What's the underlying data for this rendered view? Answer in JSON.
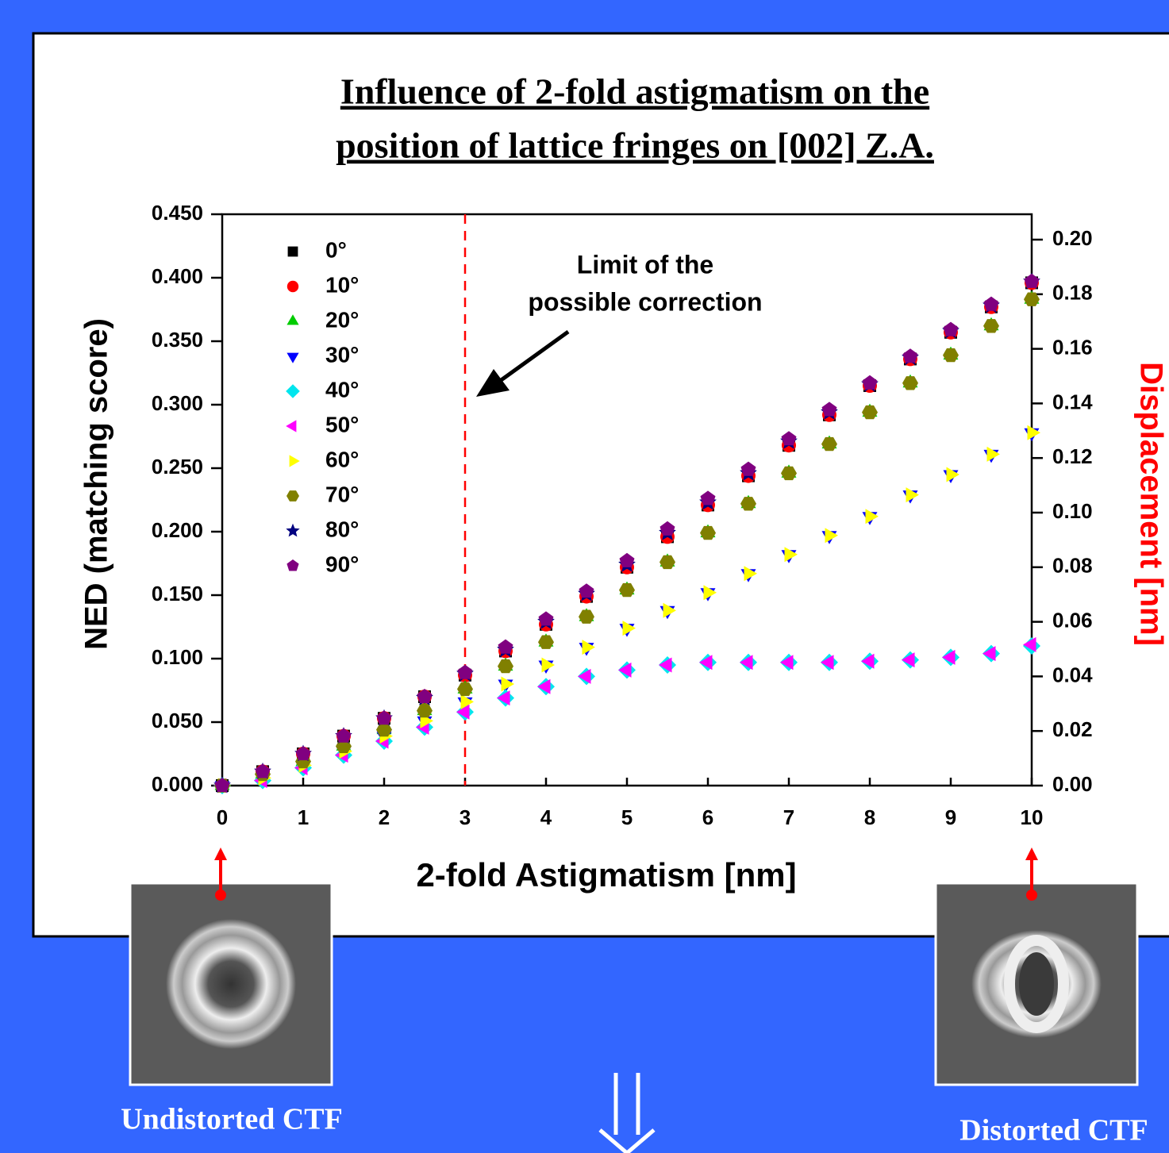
{
  "chart_data": {
    "type": "scatter",
    "title": [
      "Influence of 2-fold astigmatism on the",
      "position of lattice fringes on [002] Z.A."
    ],
    "xlabel": "2-fold Astigmatism [nm]",
    "ylabel": "NED (matching score)",
    "y2label": "Displacement [nm]",
    "annotation": [
      "Limit of the",
      "possible correction"
    ],
    "limit_x": 3,
    "x": [
      0,
      0.5,
      1,
      1.5,
      2,
      2.5,
      3,
      3.5,
      4,
      4.5,
      5,
      5.5,
      6,
      6.5,
      7,
      7.5,
      8,
      8.5,
      9,
      9.5,
      10
    ],
    "xlim": [
      0,
      10
    ],
    "xticks": [
      0,
      1,
      2,
      3,
      4,
      5,
      6,
      7,
      8,
      9,
      10
    ],
    "ylim": [
      0,
      0.45
    ],
    "yticks": [
      {
        "value": 0,
        "label": "0.000"
      },
      {
        "value": 0.05,
        "label": "0.050"
      },
      {
        "value": 0.1,
        "label": "0.100"
      },
      {
        "value": 0.15,
        "label": "0.150"
      },
      {
        "value": 0.2,
        "label": "0.200"
      },
      {
        "value": 0.25,
        "label": "0.250"
      },
      {
        "value": 0.3,
        "label": "0.300"
      },
      {
        "value": 0.35,
        "label": "0.350"
      },
      {
        "value": 0.4,
        "label": "0.400"
      },
      {
        "value": 0.45,
        "label": "0.450"
      }
    ],
    "y2lim": [
      0,
      0.2093
    ],
    "y2ticks": [
      {
        "value": 0,
        "label": "0.00"
      },
      {
        "value": 0.02,
        "label": "0.02"
      },
      {
        "value": 0.04,
        "label": "0.04"
      },
      {
        "value": 0.06,
        "label": "0.06"
      },
      {
        "value": 0.08,
        "label": "0.08"
      },
      {
        "value": 0.1,
        "label": "0.10"
      },
      {
        "value": 0.12,
        "label": "0.12"
      },
      {
        "value": 0.14,
        "label": "0.14"
      },
      {
        "value": 0.16,
        "label": "0.16"
      },
      {
        "value": 0.18,
        "label": "0.18"
      },
      {
        "value": 0.2,
        "label": "0.20"
      }
    ],
    "y2color": "#ff0000",
    "series": [
      {
        "name": "0°",
        "color": "#000000",
        "marker": "square",
        "values": [
          0,
          0.011,
          0.025,
          0.039,
          0.053,
          0.07,
          0.087,
          0.106,
          0.127,
          0.149,
          0.172,
          0.196,
          0.221,
          0.244,
          0.268,
          0.292,
          0.315,
          0.336,
          0.357,
          0.377,
          0.396
        ]
      },
      {
        "name": "10°",
        "color": "#ff0000",
        "marker": "circle",
        "values": [
          0,
          0.011,
          0.025,
          0.039,
          0.053,
          0.07,
          0.087,
          0.106,
          0.127,
          0.149,
          0.172,
          0.196,
          0.221,
          0.244,
          0.268,
          0.292,
          0.315,
          0.336,
          0.357,
          0.377,
          0.396
        ]
      },
      {
        "name": "20°",
        "color": "#00cc00",
        "marker": "triangle-up",
        "values": [
          0,
          0.009,
          0.019,
          0.031,
          0.044,
          0.059,
          0.076,
          0.094,
          0.113,
          0.133,
          0.154,
          0.176,
          0.199,
          0.222,
          0.246,
          0.269,
          0.294,
          0.317,
          0.339,
          0.362,
          0.383
        ]
      },
      {
        "name": "30°",
        "color": "#0000ff",
        "marker": "triangle-down",
        "values": [
          0,
          0.006,
          0.016,
          0.027,
          0.039,
          0.051,
          0.066,
          0.08,
          0.095,
          0.109,
          0.124,
          0.138,
          0.152,
          0.167,
          0.182,
          0.197,
          0.212,
          0.229,
          0.245,
          0.261,
          0.278
        ]
      },
      {
        "name": "40°",
        "color": "#00e5ee",
        "marker": "diamond",
        "values": [
          0,
          0.004,
          0.014,
          0.024,
          0.035,
          0.046,
          0.058,
          0.069,
          0.078,
          0.086,
          0.091,
          0.095,
          0.097,
          0.097,
          0.097,
          0.097,
          0.098,
          0.099,
          0.101,
          0.104,
          0.11
        ]
      },
      {
        "name": "50°",
        "color": "#ff00ff",
        "marker": "triangle-left",
        "values": [
          0,
          0.004,
          0.014,
          0.024,
          0.035,
          0.046,
          0.058,
          0.069,
          0.078,
          0.086,
          0.091,
          0.095,
          0.097,
          0.097,
          0.097,
          0.097,
          0.098,
          0.099,
          0.101,
          0.104,
          0.111
        ]
      },
      {
        "name": "60°",
        "color": "#ffff00",
        "marker": "triangle-right",
        "values": [
          0,
          0.006,
          0.016,
          0.027,
          0.039,
          0.051,
          0.066,
          0.08,
          0.095,
          0.109,
          0.124,
          0.138,
          0.152,
          0.167,
          0.182,
          0.197,
          0.212,
          0.229,
          0.245,
          0.261,
          0.278
        ]
      },
      {
        "name": "70°",
        "color": "#808000",
        "marker": "hexagon",
        "values": [
          0,
          0.009,
          0.019,
          0.031,
          0.044,
          0.059,
          0.076,
          0.094,
          0.113,
          0.133,
          0.154,
          0.176,
          0.199,
          0.222,
          0.246,
          0.269,
          0.294,
          0.317,
          0.339,
          0.362,
          0.383
        ]
      },
      {
        "name": "80°",
        "color": "#000080",
        "marker": "star",
        "values": [
          0,
          0.011,
          0.025,
          0.039,
          0.053,
          0.069,
          0.088,
          0.107,
          0.129,
          0.151,
          0.174,
          0.199,
          0.223,
          0.246,
          0.271,
          0.294,
          0.316,
          0.337,
          0.358,
          0.378,
          0.397
        ]
      },
      {
        "name": "90°",
        "color": "#800080",
        "marker": "pentagon",
        "values": [
          0,
          0.011,
          0.025,
          0.039,
          0.053,
          0.07,
          0.089,
          0.109,
          0.131,
          0.153,
          0.177,
          0.202,
          0.226,
          0.249,
          0.273,
          0.296,
          0.317,
          0.338,
          0.359,
          0.379,
          0.397
        ]
      }
    ]
  },
  "images": {
    "left_caption": "Undistorted CTF",
    "right_caption": "Distorted CTF"
  }
}
